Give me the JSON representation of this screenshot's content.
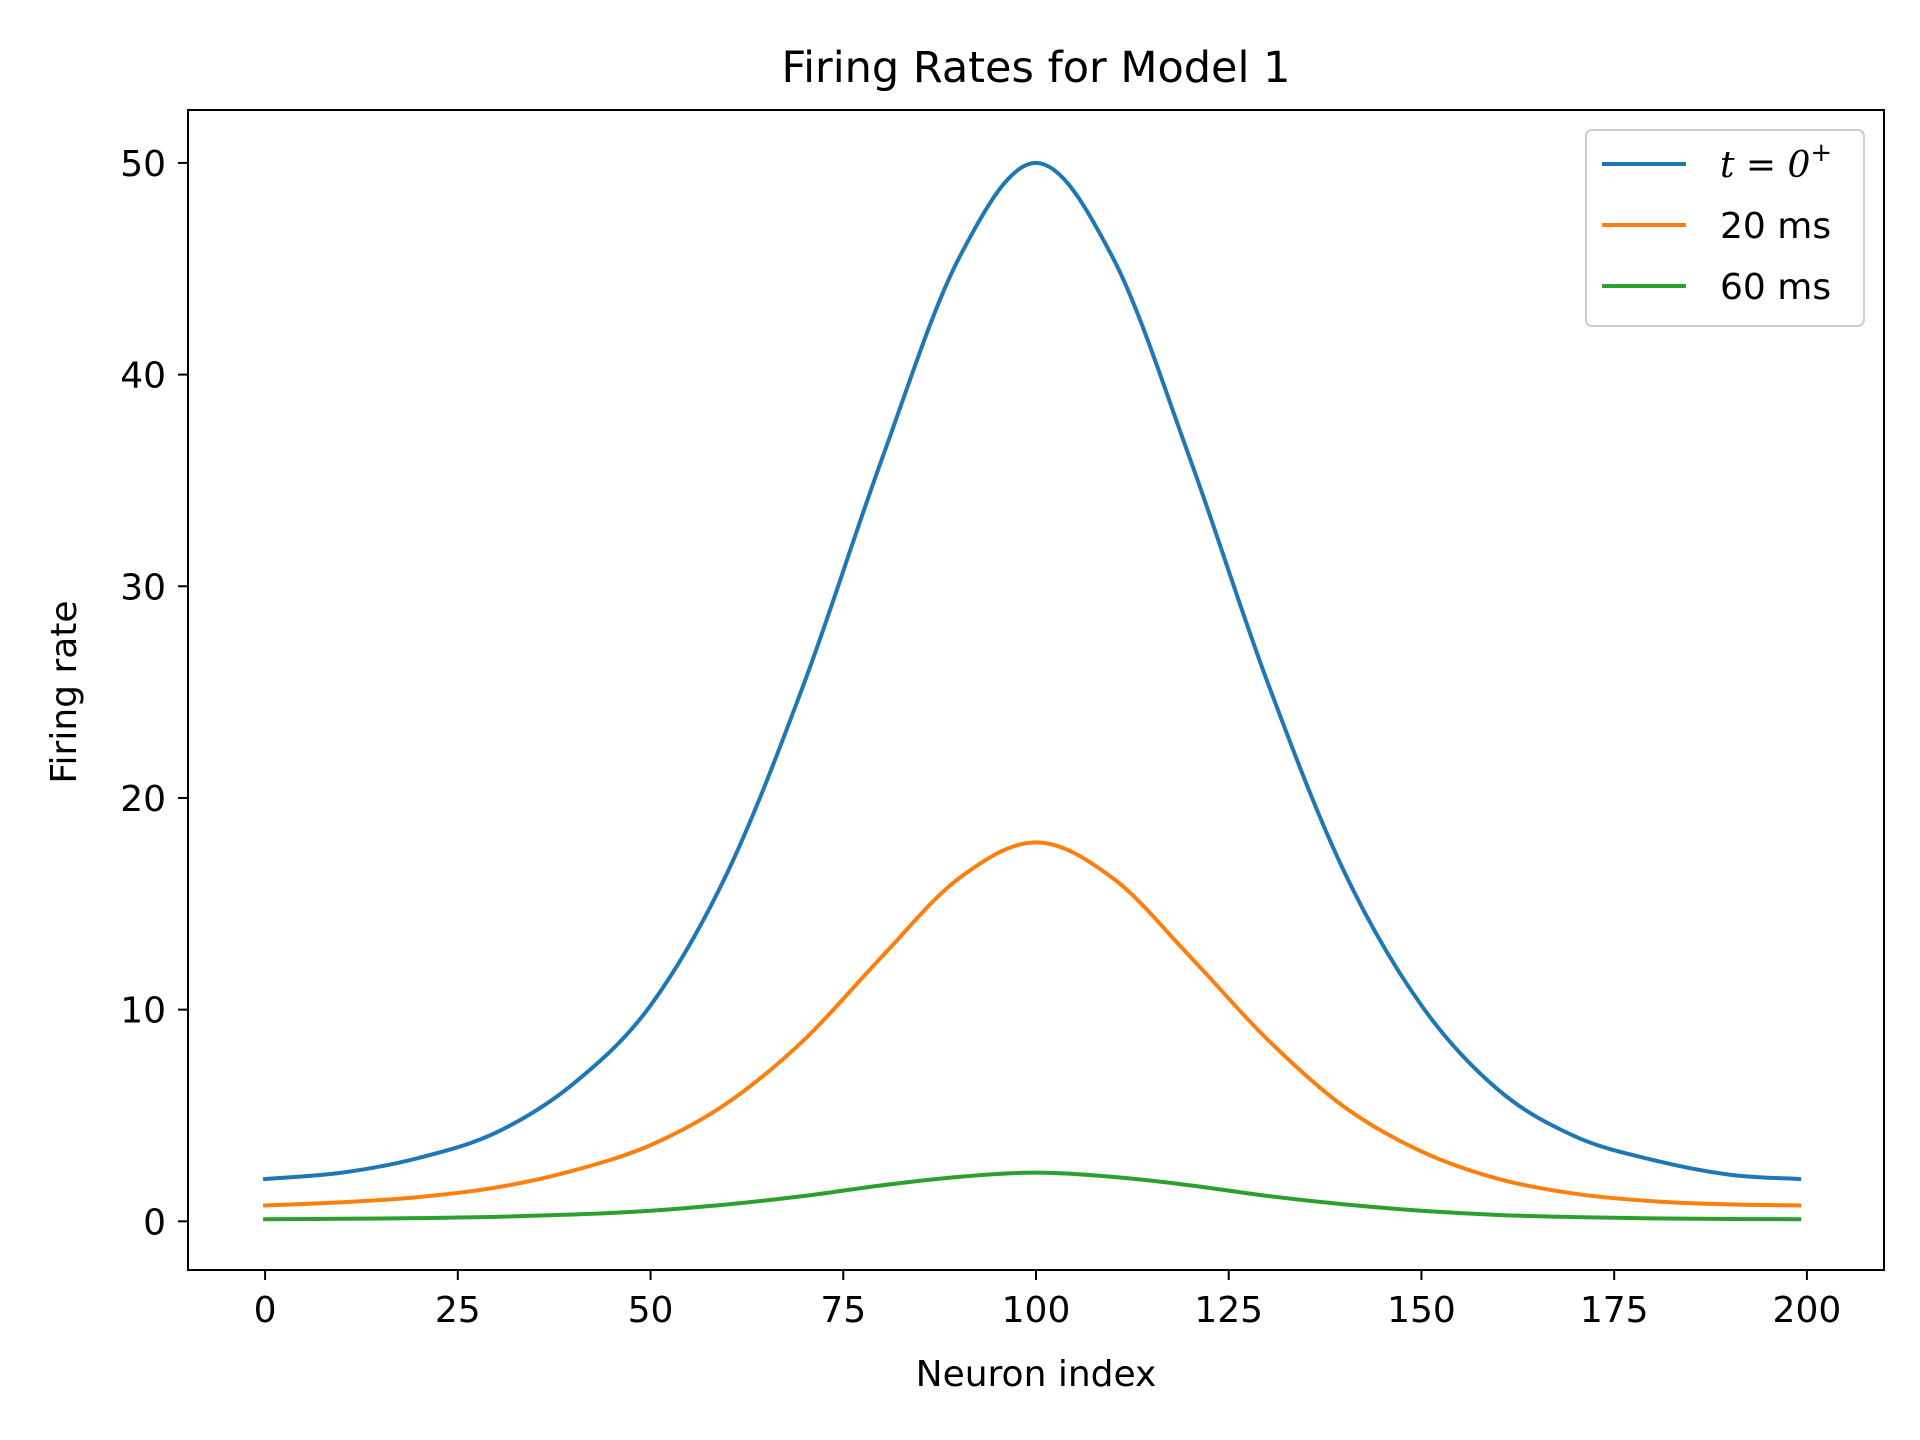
{
  "chart_data": {
    "type": "line",
    "title": "Firing Rates for Model 1",
    "xlabel": "Neuron index",
    "ylabel": "Firing rate",
    "xlim": [
      -10,
      210
    ],
    "ylim": [
      -2.3,
      52.5
    ],
    "xticks": [
      0,
      25,
      50,
      75,
      100,
      125,
      150,
      175,
      200
    ],
    "yticks": [
      0,
      10,
      20,
      30,
      40,
      50
    ],
    "grid": false,
    "legend_position": "top-right",
    "series": [
      {
        "name": "t = 0+",
        "label_base": "t = 0",
        "label_sup": "+",
        "color": "#1f77b4",
        "x": [
          0,
          10,
          20,
          30,
          40,
          50,
          60,
          70,
          80,
          90,
          100,
          110,
          120,
          130,
          140,
          150,
          160,
          170,
          180,
          190,
          199
        ],
        "y": [
          2.0,
          2.3,
          3.0,
          4.2,
          6.5,
          10.2,
          16.5,
          25.5,
          36.0,
          45.5,
          50.0,
          45.5,
          36.0,
          25.5,
          16.5,
          10.2,
          6.2,
          4.0,
          2.9,
          2.2,
          2.0
        ]
      },
      {
        "name": "20 ms",
        "color": "#ff7f0e",
        "x": [
          0,
          10,
          20,
          30,
          40,
          50,
          60,
          70,
          80,
          90,
          100,
          110,
          120,
          130,
          140,
          150,
          160,
          170,
          180,
          190,
          199
        ],
        "y": [
          0.75,
          0.9,
          1.15,
          1.6,
          2.4,
          3.6,
          5.6,
          8.6,
          12.5,
          16.2,
          17.9,
          16.2,
          12.5,
          8.6,
          5.4,
          3.3,
          2.0,
          1.3,
          0.95,
          0.8,
          0.75
        ]
      },
      {
        "name": "60 ms",
        "color": "#2ca02c",
        "x": [
          0,
          10,
          20,
          30,
          40,
          50,
          60,
          70,
          80,
          90,
          100,
          110,
          120,
          130,
          140,
          150,
          160,
          170,
          180,
          190,
          199
        ],
        "y": [
          0.1,
          0.12,
          0.15,
          0.21,
          0.32,
          0.5,
          0.8,
          1.2,
          1.7,
          2.1,
          2.3,
          2.1,
          1.7,
          1.2,
          0.8,
          0.5,
          0.3,
          0.2,
          0.14,
          0.11,
          0.1
        ]
      }
    ]
  }
}
